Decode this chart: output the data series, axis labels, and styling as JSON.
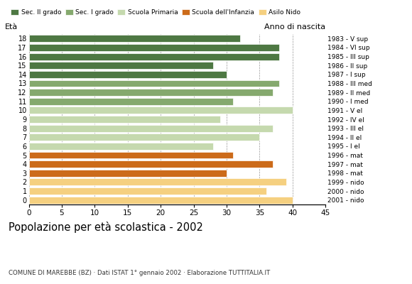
{
  "ages": [
    18,
    17,
    16,
    15,
    14,
    13,
    12,
    11,
    10,
    9,
    8,
    7,
    6,
    5,
    4,
    3,
    2,
    1,
    0
  ],
  "values": [
    32,
    38,
    38,
    28,
    30,
    38,
    37,
    31,
    40,
    29,
    37,
    35,
    28,
    31,
    37,
    30,
    39,
    36,
    40
  ],
  "anno_nascita": [
    "1983 - V sup",
    "1984 - VI sup",
    "1985 - III sup",
    "1986 - II sup",
    "1987 - I sup",
    "1988 - III med",
    "1989 - II med",
    "1990 - I med",
    "1991 - V el",
    "1992 - IV el",
    "1993 - III el",
    "1994 - II el",
    "1995 - I el",
    "1996 - mat",
    "1997 - mat",
    "1998 - mat",
    "1999 - nido",
    "2000 - nido",
    "2001 - nido"
  ],
  "categories": {
    "sec2": {
      "ages": [
        18,
        17,
        16,
        15,
        14
      ],
      "color": "#4e7843"
    },
    "sec1": {
      "ages": [
        13,
        12,
        11
      ],
      "color": "#85a96e"
    },
    "primaria": {
      "ages": [
        10,
        9,
        8,
        7,
        6
      ],
      "color": "#c5d9ae"
    },
    "infanzia": {
      "ages": [
        5,
        4,
        3
      ],
      "color": "#cc6b1a"
    },
    "nido": {
      "ages": [
        2,
        1,
        0
      ],
      "color": "#f5d080"
    }
  },
  "legend_labels": [
    "Sec. II grado",
    "Sec. I grado",
    "Scuola Primaria",
    "Scuola dell'Infanzia",
    "Asilo Nido"
  ],
  "legend_colors": [
    "#4e7843",
    "#85a96e",
    "#c5d9ae",
    "#cc6b1a",
    "#f5d080"
  ],
  "title": "Popolazione per età scolastica - 2002",
  "subtitle": "COMUNE DI MAREBBE (BZ) · Dati ISTAT 1° gennaio 2002 · Elaborazione TUTTITALIA.IT",
  "label_eta": "Età",
  "label_anno": "Anno di nascita",
  "xlim": [
    0,
    45
  ],
  "xticks": [
    0,
    5,
    10,
    15,
    20,
    25,
    30,
    35,
    40,
    45
  ],
  "bg_color": "#ffffff",
  "bar_height": 0.78,
  "grid_color": "#999999",
  "grid_style": "--"
}
